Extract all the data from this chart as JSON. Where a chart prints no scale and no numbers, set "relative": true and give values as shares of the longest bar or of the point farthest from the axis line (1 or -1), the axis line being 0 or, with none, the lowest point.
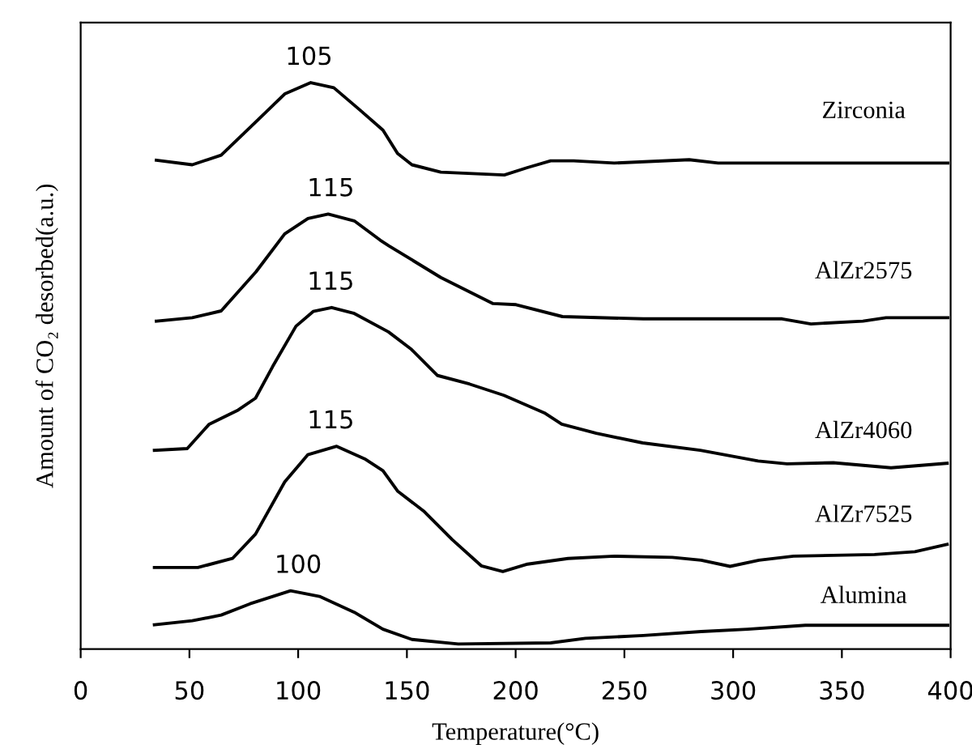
{
  "chart_data": {
    "type": "line",
    "relative": true,
    "xlabel": "Temperature(°C)",
    "ylabel": "Amount of CO₂ desorbed(a.u.)",
    "xlim": [
      0,
      400
    ],
    "xticks": [
      0,
      50,
      100,
      150,
      200,
      250,
      300,
      350,
      400
    ],
    "grid": false,
    "legend": false,
    "marker": "none",
    "line_style": "solid",
    "series": [
      {
        "name": "Zirconia",
        "color": "#000000",
        "x": [
          34.8,
          51.3,
          64.6,
          80.6,
          93.8,
          105.8,
          116.4,
          128.3,
          139.0,
          145.7,
          152.3,
          165.6,
          194.8,
          205.4,
          216.1,
          226.7,
          245.3,
          279.8,
          293.1,
          338.3,
          398.7
        ],
        "values": [
          0.863,
          0.855,
          0.872,
          0.931,
          0.98,
          1,
          0.991,
          0.952,
          0.916,
          0.875,
          0.855,
          0.842,
          0.837,
          0.85,
          0.862,
          0.862,
          0.858,
          0.864,
          0.858,
          0.858,
          0.858
        ]
      },
      {
        "name": "AlZr2575",
        "color": "#000000",
        "x": [
          34.8,
          51.3,
          64.6,
          80.6,
          93.8,
          104.5,
          113.8,
          125.8,
          137.7,
          141.7,
          165.6,
          189.6,
          200.2,
          221.5,
          258.7,
          322.5,
          335.8,
          359.7,
          370.3,
          398.7
        ],
        "values": [
          0.579,
          0.585,
          0.597,
          0.666,
          0.733,
          0.76,
          0.768,
          0.756,
          0.722,
          0.712,
          0.656,
          0.61,
          0.608,
          0.587,
          0.583,
          0.583,
          0.574,
          0.579,
          0.585,
          0.585
        ]
      },
      {
        "name": "AlZr4060",
        "color": "#000000",
        "x": [
          33.9,
          49.0,
          59.1,
          72.4,
          80.4,
          88.3,
          99.0,
          106.9,
          115.4,
          125.5,
          141.5,
          152.1,
          164.1,
          178.7,
          194.6,
          213.2,
          221.2,
          237.1,
          258.4,
          284.9,
          311.5,
          324.8,
          346.1,
          372.6,
          398.4
        ],
        "values": [
          0.351,
          0.354,
          0.397,
          0.422,
          0.443,
          0.499,
          0.57,
          0.596,
          0.603,
          0.593,
          0.56,
          0.529,
          0.483,
          0.468,
          0.448,
          0.417,
          0.397,
          0.381,
          0.364,
          0.351,
          0.332,
          0.327,
          0.329,
          0.32,
          0.328
        ]
      },
      {
        "name": "AlZr7525",
        "color": "#000000",
        "x": [
          33.9,
          53.9,
          69.8,
          80.4,
          93.8,
          104.4,
          117.7,
          131.0,
          139.0,
          145.7,
          157.6,
          170.9,
          184.2,
          194.1,
          205.5,
          224.1,
          245.4,
          272.0,
          285.3,
          298.6,
          311.9,
          327.8,
          365.0,
          383.6,
          398.4
        ],
        "values": [
          0.144,
          0.144,
          0.16,
          0.203,
          0.295,
          0.343,
          0.358,
          0.335,
          0.315,
          0.279,
          0.244,
          0.193,
          0.147,
          0.137,
          0.15,
          0.16,
          0.164,
          0.162,
          0.157,
          0.146,
          0.157,
          0.164,
          0.167,
          0.172,
          0.185
        ]
      },
      {
        "name": "Alumina",
        "color": "#000000",
        "x": [
          33.9,
          51.3,
          64.6,
          77.9,
          96.5,
          109.8,
          125.8,
          139.0,
          152.3,
          173.6,
          216.1,
          232.1,
          258.7,
          285.3,
          306.6,
          333.2,
          365.0,
          398.7
        ],
        "values": [
          0.043,
          0.05,
          0.06,
          0.08,
          0.103,
          0.093,
          0.065,
          0.035,
          0.017,
          0.009,
          0.011,
          0.019,
          0.024,
          0.031,
          0.035,
          0.042,
          0.042,
          0.042
        ]
      }
    ],
    "annotations": [
      {
        "text": "105",
        "x": 105,
        "y": 1.0
      },
      {
        "text": "115",
        "x": 115,
        "y": 0.768
      },
      {
        "text": "115",
        "x": 115,
        "y": 0.603
      },
      {
        "text": "115",
        "x": 115,
        "y": 0.358
      },
      {
        "text": "100",
        "x": 100,
        "y": 0.103
      }
    ]
  }
}
